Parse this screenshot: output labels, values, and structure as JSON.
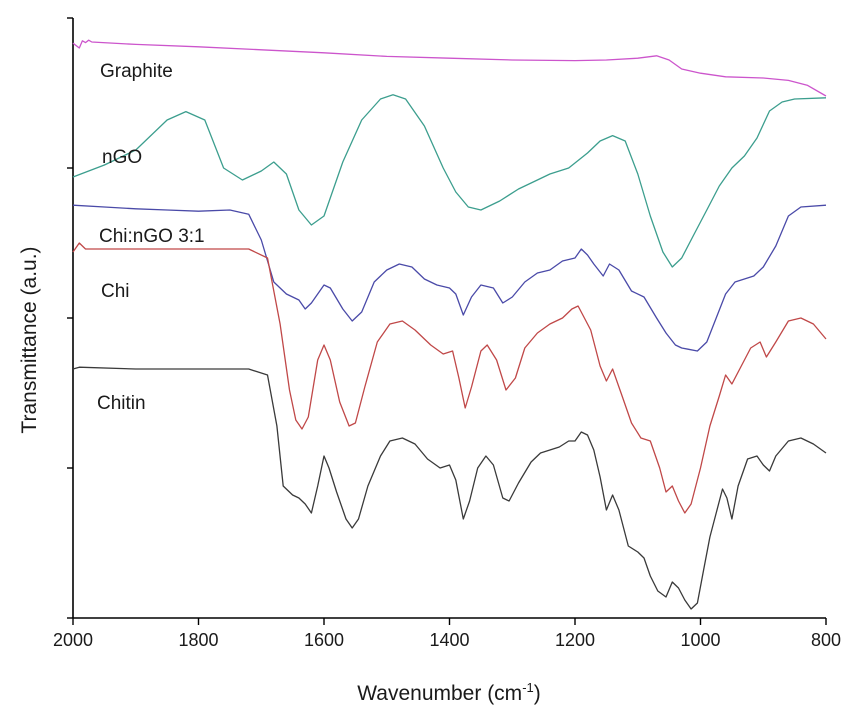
{
  "chart_data": {
    "type": "line",
    "xlabel": "Wavenumber (cm",
    "xlabel_sup": "-1",
    "xlabel_tail": ")",
    "ylabel": "Transmittance (a.u.)",
    "xlim": [
      2000,
      800
    ],
    "x_reversed": true,
    "xticks": [
      "2000",
      "1800",
      "1600",
      "1400",
      "1200",
      "1000",
      "800"
    ],
    "ylim": [
      0,
      100
    ],
    "grid": false,
    "series": [
      {
        "name": "Graphite",
        "color": "#cc55cc",
        "baseline": 95.5,
        "points": [
          [
            2000,
            95.8
          ],
          [
            1990,
            95.0
          ],
          [
            1985,
            96.2
          ],
          [
            1980,
            95.9
          ],
          [
            1975,
            96.3
          ],
          [
            1970,
            96.0
          ],
          [
            1900,
            95.6
          ],
          [
            1800,
            95.2
          ],
          [
            1700,
            94.7
          ],
          [
            1600,
            94.2
          ],
          [
            1500,
            93.6
          ],
          [
            1400,
            93.3
          ],
          [
            1300,
            93.0
          ],
          [
            1200,
            92.9
          ],
          [
            1150,
            93.0
          ],
          [
            1100,
            93.3
          ],
          [
            1070,
            93.7
          ],
          [
            1050,
            93.0
          ],
          [
            1030,
            91.5
          ],
          [
            1000,
            90.8
          ],
          [
            960,
            90.2
          ],
          [
            900,
            90.0
          ],
          [
            860,
            89.6
          ],
          [
            830,
            88.8
          ],
          [
            800,
            87.0
          ]
        ]
      },
      {
        "name": "nGO",
        "color": "#3c9e8e",
        "baseline": 72.0,
        "points": [
          [
            2000,
            73.5
          ],
          [
            1950,
            75.5
          ],
          [
            1900,
            78.0
          ],
          [
            1850,
            83.0
          ],
          [
            1820,
            84.4
          ],
          [
            1790,
            83.0
          ],
          [
            1760,
            75.0
          ],
          [
            1730,
            73.0
          ],
          [
            1700,
            74.5
          ],
          [
            1680,
            76.0
          ],
          [
            1660,
            74.0
          ],
          [
            1640,
            68.0
          ],
          [
            1620,
            65.5
          ],
          [
            1600,
            67.0
          ],
          [
            1570,
            76.0
          ],
          [
            1540,
            83.0
          ],
          [
            1510,
            86.5
          ],
          [
            1490,
            87.2
          ],
          [
            1470,
            86.5
          ],
          [
            1440,
            82.0
          ],
          [
            1410,
            75.0
          ],
          [
            1390,
            71.0
          ],
          [
            1370,
            68.5
          ],
          [
            1350,
            68.0
          ],
          [
            1320,
            69.5
          ],
          [
            1290,
            71.5
          ],
          [
            1260,
            73.0
          ],
          [
            1240,
            74.0
          ],
          [
            1210,
            75.0
          ],
          [
            1180,
            77.5
          ],
          [
            1160,
            79.5
          ],
          [
            1140,
            80.4
          ],
          [
            1120,
            79.5
          ],
          [
            1100,
            74.0
          ],
          [
            1080,
            67.0
          ],
          [
            1060,
            61.0
          ],
          [
            1045,
            58.5
          ],
          [
            1030,
            60.0
          ],
          [
            1010,
            64.0
          ],
          [
            990,
            68.0
          ],
          [
            970,
            72.0
          ],
          [
            950,
            75.0
          ],
          [
            930,
            77.0
          ],
          [
            910,
            80.0
          ],
          [
            890,
            84.5
          ],
          [
            870,
            86.0
          ],
          [
            850,
            86.5
          ],
          [
            800,
            86.7
          ]
        ]
      },
      {
        "name": "Chi:nGO 3:1",
        "color": "#4a4aa8",
        "baseline": 68.0,
        "points": [
          [
            2000,
            68.8
          ],
          [
            1950,
            68.5
          ],
          [
            1900,
            68.2
          ],
          [
            1850,
            68.0
          ],
          [
            1800,
            67.8
          ],
          [
            1750,
            68.0
          ],
          [
            1720,
            67.3
          ],
          [
            1700,
            63.0
          ],
          [
            1680,
            56.0
          ],
          [
            1660,
            54.0
          ],
          [
            1640,
            53.0
          ],
          [
            1630,
            51.5
          ],
          [
            1620,
            52.5
          ],
          [
            1600,
            55.5
          ],
          [
            1590,
            55.0
          ],
          [
            1570,
            51.5
          ],
          [
            1555,
            49.5
          ],
          [
            1540,
            51.0
          ],
          [
            1520,
            56.0
          ],
          [
            1500,
            58.0
          ],
          [
            1480,
            59.0
          ],
          [
            1460,
            58.5
          ],
          [
            1440,
            56.5
          ],
          [
            1420,
            55.5
          ],
          [
            1400,
            55.0
          ],
          [
            1390,
            54.0
          ],
          [
            1378,
            50.5
          ],
          [
            1365,
            53.5
          ],
          [
            1350,
            55.5
          ],
          [
            1330,
            55.0
          ],
          [
            1315,
            52.5
          ],
          [
            1300,
            53.5
          ],
          [
            1280,
            56.0
          ],
          [
            1260,
            57.5
          ],
          [
            1240,
            58.0
          ],
          [
            1220,
            59.5
          ],
          [
            1200,
            60.0
          ],
          [
            1190,
            61.5
          ],
          [
            1180,
            60.5
          ],
          [
            1170,
            59.0
          ],
          [
            1155,
            57.0
          ],
          [
            1145,
            59.0
          ],
          [
            1130,
            58.0
          ],
          [
            1110,
            54.5
          ],
          [
            1090,
            53.5
          ],
          [
            1070,
            50.0
          ],
          [
            1055,
            47.5
          ],
          [
            1040,
            45.5
          ],
          [
            1030,
            45.0
          ],
          [
            1020,
            44.8
          ],
          [
            1005,
            44.5
          ],
          [
            990,
            46.0
          ],
          [
            975,
            50.0
          ],
          [
            960,
            54.0
          ],
          [
            945,
            56.0
          ],
          [
            930,
            56.5
          ],
          [
            915,
            57.0
          ],
          [
            900,
            58.5
          ],
          [
            880,
            62.0
          ],
          [
            860,
            67.0
          ],
          [
            840,
            68.5
          ],
          [
            800,
            68.8
          ]
        ]
      },
      {
        "name": "Chi",
        "color": "#c04848",
        "baseline": 61.0,
        "points": [
          [
            2000,
            61.0
          ],
          [
            1990,
            62.5
          ],
          [
            1980,
            61.5
          ],
          [
            1900,
            61.5
          ],
          [
            1800,
            61.5
          ],
          [
            1720,
            61.5
          ],
          [
            1690,
            60.0
          ],
          [
            1670,
            49.0
          ],
          [
            1655,
            38.0
          ],
          [
            1645,
            33.0
          ],
          [
            1635,
            31.5
          ],
          [
            1625,
            33.5
          ],
          [
            1610,
            43.0
          ],
          [
            1600,
            45.5
          ],
          [
            1590,
            43.0
          ],
          [
            1575,
            36.0
          ],
          [
            1560,
            32.0
          ],
          [
            1550,
            32.5
          ],
          [
            1535,
            38.5
          ],
          [
            1515,
            46.0
          ],
          [
            1495,
            49.0
          ],
          [
            1475,
            49.5
          ],
          [
            1455,
            48.0
          ],
          [
            1430,
            45.5
          ],
          [
            1410,
            44.0
          ],
          [
            1395,
            44.5
          ],
          [
            1385,
            40.0
          ],
          [
            1375,
            35.0
          ],
          [
            1365,
            38.5
          ],
          [
            1350,
            44.5
          ],
          [
            1340,
            45.5
          ],
          [
            1325,
            43.0
          ],
          [
            1310,
            38.0
          ],
          [
            1295,
            40.0
          ],
          [
            1280,
            45.0
          ],
          [
            1260,
            47.5
          ],
          [
            1240,
            49.0
          ],
          [
            1220,
            50.0
          ],
          [
            1205,
            51.5
          ],
          [
            1195,
            52.0
          ],
          [
            1185,
            50.0
          ],
          [
            1175,
            48.0
          ],
          [
            1160,
            42.0
          ],
          [
            1150,
            39.5
          ],
          [
            1140,
            41.5
          ],
          [
            1125,
            37.0
          ],
          [
            1110,
            32.5
          ],
          [
            1095,
            30.0
          ],
          [
            1080,
            29.5
          ],
          [
            1065,
            25.0
          ],
          [
            1055,
            21.0
          ],
          [
            1045,
            22.0
          ],
          [
            1035,
            19.5
          ],
          [
            1025,
            17.5
          ],
          [
            1015,
            19.0
          ],
          [
            1000,
            25.0
          ],
          [
            985,
            32.0
          ],
          [
            970,
            37.0
          ],
          [
            960,
            40.5
          ],
          [
            950,
            39.0
          ],
          [
            935,
            42.0
          ],
          [
            920,
            45.0
          ],
          [
            905,
            46.0
          ],
          [
            895,
            43.5
          ],
          [
            880,
            46.0
          ],
          [
            860,
            49.5
          ],
          [
            840,
            50.0
          ],
          [
            820,
            49.0
          ],
          [
            800,
            46.5
          ]
        ]
      },
      {
        "name": "Chitin",
        "color": "#3a3a3a",
        "baseline": 41.0,
        "points": [
          [
            2000,
            41.5
          ],
          [
            1990,
            41.8
          ],
          [
            1900,
            41.5
          ],
          [
            1800,
            41.5
          ],
          [
            1720,
            41.5
          ],
          [
            1690,
            40.5
          ],
          [
            1675,
            32.0
          ],
          [
            1665,
            22.0
          ],
          [
            1650,
            20.5
          ],
          [
            1640,
            20.0
          ],
          [
            1630,
            19.0
          ],
          [
            1620,
            17.5
          ],
          [
            1610,
            22.0
          ],
          [
            1600,
            27.0
          ],
          [
            1592,
            25.0
          ],
          [
            1580,
            21.0
          ],
          [
            1565,
            16.5
          ],
          [
            1555,
            15.0
          ],
          [
            1545,
            16.5
          ],
          [
            1530,
            22.0
          ],
          [
            1510,
            27.0
          ],
          [
            1495,
            29.5
          ],
          [
            1475,
            30.0
          ],
          [
            1455,
            29.0
          ],
          [
            1435,
            26.5
          ],
          [
            1415,
            25.0
          ],
          [
            1400,
            25.5
          ],
          [
            1390,
            23.0
          ],
          [
            1378,
            16.5
          ],
          [
            1368,
            19.5
          ],
          [
            1355,
            25.0
          ],
          [
            1342,
            27.0
          ],
          [
            1330,
            25.5
          ],
          [
            1315,
            20.0
          ],
          [
            1305,
            19.5
          ],
          [
            1290,
            22.5
          ],
          [
            1270,
            26.0
          ],
          [
            1255,
            27.5
          ],
          [
            1240,
            28.0
          ],
          [
            1225,
            28.5
          ],
          [
            1210,
            29.5
          ],
          [
            1200,
            29.5
          ],
          [
            1190,
            31.0
          ],
          [
            1180,
            30.5
          ],
          [
            1170,
            28.0
          ],
          [
            1160,
            23.5
          ],
          [
            1150,
            18.0
          ],
          [
            1140,
            20.5
          ],
          [
            1130,
            18.0
          ],
          [
            1115,
            12.0
          ],
          [
            1100,
            11.0
          ],
          [
            1090,
            10.0
          ],
          [
            1080,
            7.0
          ],
          [
            1068,
            4.5
          ],
          [
            1055,
            3.5
          ],
          [
            1045,
            6.0
          ],
          [
            1035,
            5.0
          ],
          [
            1025,
            3.0
          ],
          [
            1015,
            1.5
          ],
          [
            1005,
            2.5
          ],
          [
            995,
            8.0
          ],
          [
            985,
            13.5
          ],
          [
            975,
            17.5
          ],
          [
            965,
            21.5
          ],
          [
            958,
            20.0
          ],
          [
            950,
            16.5
          ],
          [
            940,
            22.0
          ],
          [
            925,
            26.5
          ],
          [
            910,
            27.0
          ],
          [
            900,
            25.5
          ],
          [
            890,
            24.5
          ],
          [
            880,
            27.0
          ],
          [
            860,
            29.5
          ],
          [
            840,
            30.0
          ],
          [
            820,
            29.0
          ],
          [
            800,
            27.5
          ]
        ]
      }
    ],
    "series_labels": [
      "Graphite",
      "nGO",
      "Chi:nGO 3:1",
      "Chi",
      "Chitin"
    ]
  }
}
